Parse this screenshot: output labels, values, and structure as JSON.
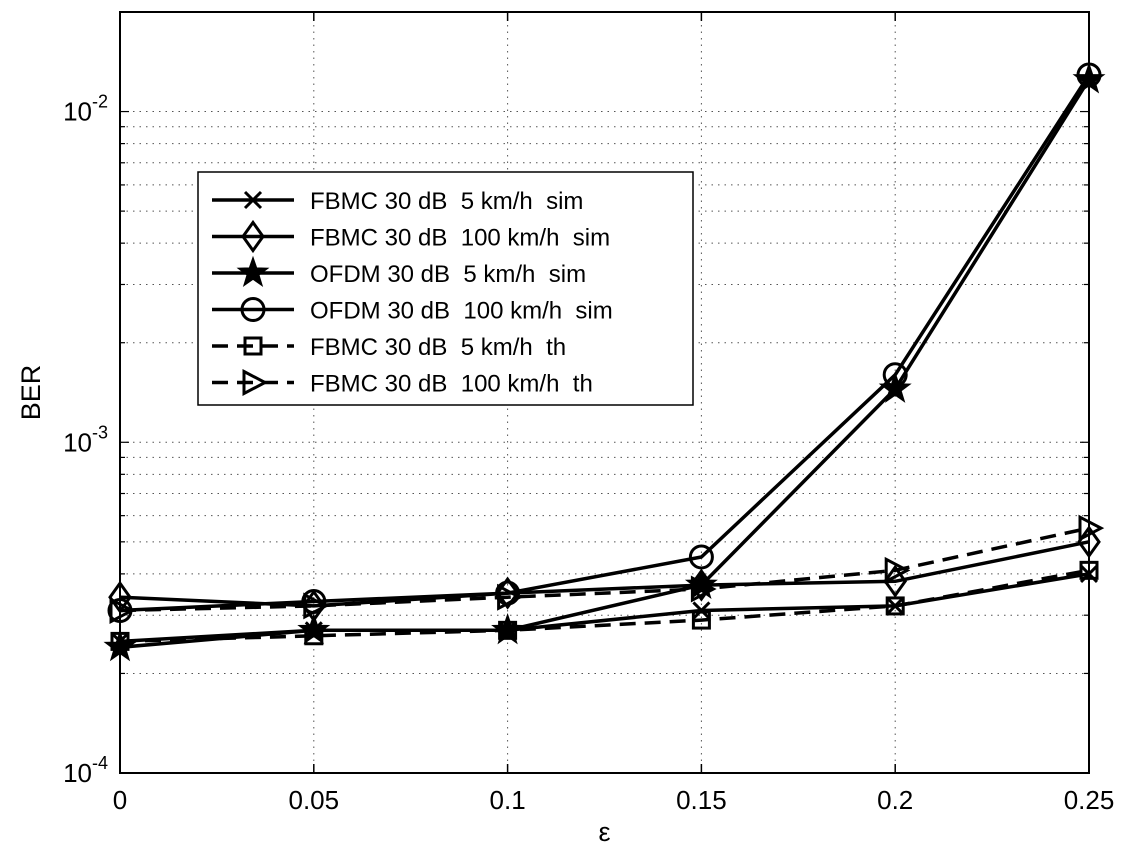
{
  "chart_data": {
    "type": "line",
    "xlabel": "ε",
    "ylabel": "BER",
    "xlim": [
      0,
      0.25
    ],
    "ylim": [
      0.0001,
      0.02
    ],
    "yscale": "log",
    "grid": true,
    "legend_position": "upper-left",
    "x": [
      0,
      0.05,
      0.1,
      0.15,
      0.2,
      0.25
    ],
    "x_tick_labels": [
      "0",
      "0.05",
      "0.1",
      "0.15",
      "0.2",
      "0.25"
    ],
    "y_ticks": [
      {
        "value": 0.0001,
        "base": "10",
        "exp": "-4"
      },
      {
        "value": 0.001,
        "base": "10",
        "exp": "-3"
      },
      {
        "value": 0.01,
        "base": "10",
        "exp": "-2"
      }
    ],
    "series": [
      {
        "name": "FBMC 30 dB  5 km/h  sim",
        "marker": "x",
        "dash": "solid",
        "values": [
          0.00025,
          0.00027,
          0.00027,
          0.00031,
          0.00032,
          0.0004
        ]
      },
      {
        "name": "FBMC 30 dB  100 km/h  sim",
        "marker": "diamond",
        "dash": "solid",
        "values": [
          0.00034,
          0.00032,
          0.00035,
          0.00037,
          0.00038,
          0.0005
        ]
      },
      {
        "name": "OFDM 30 dB  5 km/h  sim",
        "marker": "star",
        "dash": "solid",
        "values": [
          0.00024,
          0.00027,
          0.00027,
          0.00037,
          0.00145,
          0.0125
        ]
      },
      {
        "name": "OFDM 30 dB  100 km/h  sim",
        "marker": "circle",
        "dash": "solid",
        "values": [
          0.00031,
          0.00033,
          0.00035,
          0.00045,
          0.0016,
          0.0129
        ]
      },
      {
        "name": "FBMC 30 dB  5 km/h  th",
        "marker": "square",
        "dash": "dashed",
        "values": [
          0.00025,
          0.00026,
          0.00027,
          0.00029,
          0.00032,
          0.00041
        ]
      },
      {
        "name": "FBMC 30 dB  100 km/h  th",
        "marker": "triangle-right",
        "dash": "dashed",
        "values": [
          0.00031,
          0.00032,
          0.00034,
          0.00036,
          0.00041,
          0.00055
        ]
      }
    ]
  }
}
